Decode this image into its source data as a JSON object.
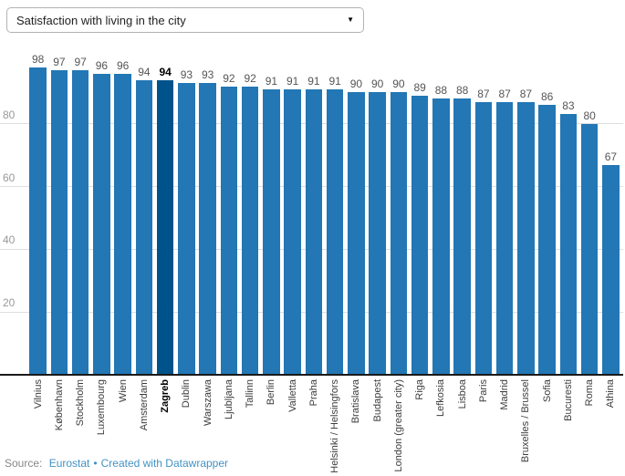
{
  "dropdown": {
    "selected": "Satisfaction with living in the city",
    "icon": "caret-down-icon"
  },
  "chart_data": {
    "type": "bar",
    "title": "Satisfaction with living in the city",
    "categories": [
      "Vilnius",
      "København",
      "Stockholm",
      "Luxembourg",
      "Wien",
      "Amsterdam",
      "Zagreb",
      "Dublin",
      "Warszawa",
      "Ljubljana",
      "Tallinn",
      "Berlin",
      "Valletta",
      "Praha",
      "Helsinki / Helsingfors",
      "Bratislava",
      "Budapest",
      "London (greater city)",
      "Riga",
      "Lefkosia",
      "Lisboa",
      "Paris",
      "Madrid",
      "Bruxelles / Brussel",
      "Sofia",
      "Bucuresti",
      "Roma",
      "Athina"
    ],
    "values": [
      98,
      97,
      97,
      96,
      96,
      94,
      94,
      93,
      93,
      92,
      92,
      91,
      91,
      91,
      91,
      90,
      90,
      90,
      89,
      88,
      88,
      87,
      87,
      87,
      86,
      83,
      80,
      67
    ],
    "highlight_category": "Zagreb",
    "highlight_index": 6,
    "yticks": [
      20,
      40,
      60,
      80
    ],
    "ylim": [
      0,
      100
    ],
    "grid": true,
    "legend": "none",
    "bar_color": "#2277b4",
    "highlight_color": "#00538a"
  },
  "colors": {
    "gridline": "#dedede",
    "baseline": "#1a1a1a",
    "tick_label": "#999999",
    "value_label": "#555555",
    "link": "#4292c4"
  },
  "footer": {
    "source_label": "Source:",
    "source_link": "Eurostat",
    "separator": "•",
    "credit_link": "Created with Datawrapper"
  }
}
